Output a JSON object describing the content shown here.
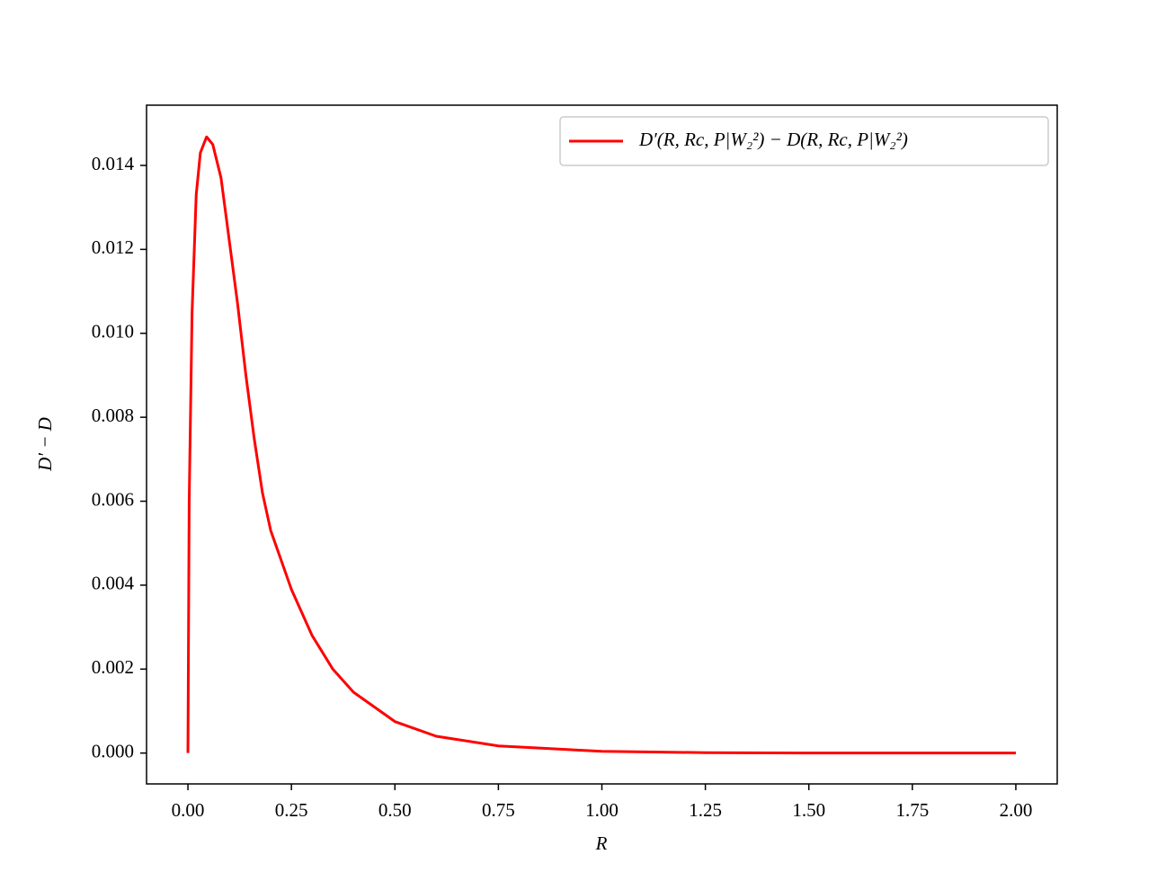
{
  "chart_data": {
    "type": "line",
    "xlabel": "R",
    "ylabel": "D′ − D",
    "x": [
      0,
      0.003,
      0.01,
      0.02,
      0.03,
      0.045,
      0.06,
      0.08,
      0.1,
      0.12,
      0.14,
      0.16,
      0.18,
      0.2,
      0.25,
      0.3,
      0.35,
      0.4,
      0.5,
      0.6,
      0.75,
      1.0,
      1.25,
      1.5,
      2.0
    ],
    "series": [
      {
        "name": "D′(R, Rc, P|W₂²) − D(R, Rc, P|W₂²)",
        "color": "#ff0000",
        "values": [
          0,
          0.006,
          0.0105,
          0.0133,
          0.0143,
          0.01468,
          0.0145,
          0.0137,
          0.0122,
          0.0107,
          0.009,
          0.0075,
          0.0062,
          0.0053,
          0.0039,
          0.0028,
          0.002,
          0.00145,
          0.00075,
          0.0004,
          0.00017,
          4e-05,
          1e-05,
          0,
          0
        ]
      }
    ],
    "xlim": [
      -0.1,
      2.1
    ],
    "xticks": [
      {
        "value": 0,
        "label": "0.00"
      },
      0.25,
      {
        "value": 0.5,
        "label": "0.50"
      },
      0.75,
      {
        "value": 1,
        "label": "1.00"
      },
      1.25,
      {
        "value": 1.5,
        "label": "1.50"
      },
      1.75,
      {
        "value": 2,
        "label": "2.00"
      }
    ],
    "ylim": [
      -0.000735,
      0.015435
    ],
    "yticks": [
      {
        "value": 0,
        "label": "0.000"
      },
      0.002,
      0.004,
      0.006,
      0.008,
      {
        "value": 0.01,
        "label": "0.010"
      },
      0.012,
      0.014
    ],
    "grid": false,
    "legend": "upper right"
  }
}
